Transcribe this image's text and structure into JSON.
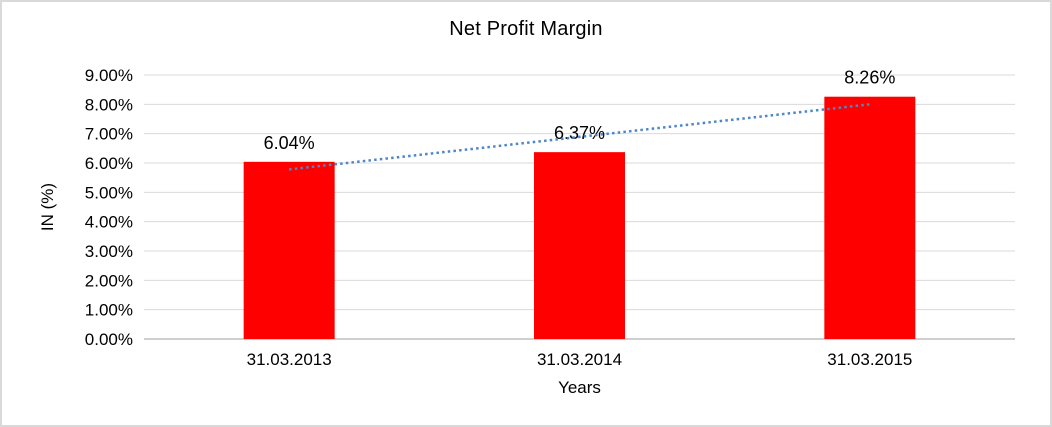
{
  "chart_data": {
    "type": "bar",
    "title": "Net Profit Margin",
    "categories": [
      "31.03.2013",
      "31.03.2014",
      "31.03.2015"
    ],
    "series": [
      {
        "name": "Net Profit Margin",
        "values": [
          6.04,
          6.37,
          8.26
        ]
      }
    ],
    "data_labels": [
      "6.04%",
      "6.37%",
      "8.26%"
    ],
    "xlabel": "Years",
    "ylabel": "IN (%)",
    "ylim": [
      0,
      9
    ],
    "ytick_step": 1,
    "ytick_labels": [
      "0.00%",
      "1.00%",
      "2.00%",
      "3.00%",
      "4.00%",
      "5.00%",
      "6.00%",
      "7.00%",
      "8.00%",
      "9.00%"
    ],
    "grid": true,
    "legend": "none",
    "trendline": {
      "type": "linear",
      "style": "dotted"
    },
    "colors": {
      "bar": "#FF0000",
      "trendline": "#4E86C8",
      "gridline": "#D9D9D9",
      "axis_line": "#BFBFBF",
      "text": "#000000",
      "border": "#D9D9D9",
      "background": "#FFFFFF"
    }
  }
}
